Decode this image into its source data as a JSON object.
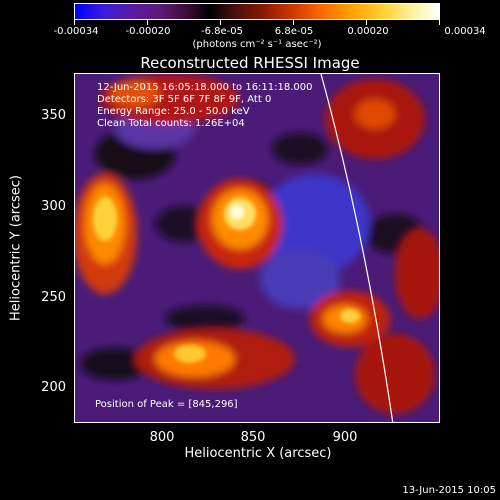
{
  "colorbar": {
    "tick_labels": [
      "-0.00034",
      "-0.00020",
      "-6.8e-05",
      "6.8e-05",
      "0.00020",
      "0.00034"
    ],
    "units": "(photons cm⁻² s⁻¹ asec⁻²)"
  },
  "title": "Reconstructed RHESSI Image",
  "info": {
    "line1": "12-Jun-2015 16:05:18.000 to 16:11:18.000",
    "line2": "Detectors: 3F 5F 6F 7F 8F 9F, Att 0",
    "line3": "Energy Range: 25.0 - 50.0 keV",
    "line4": "Clean     Total counts: 1.26E+04"
  },
  "peak": "Position of Peak = [845,296]",
  "axes": {
    "xlabel": "Heliocentric X (arcsec)",
    "ylabel": "Heliocentric Y (arcsec)",
    "xticks": [
      "800",
      "850",
      "900"
    ],
    "yticks": [
      "350",
      "300",
      "250",
      "200"
    ]
  },
  "footer": "13-Jun-2015 10:05",
  "colors": {
    "limb_line": "#ffffff",
    "background": "#000000"
  }
}
